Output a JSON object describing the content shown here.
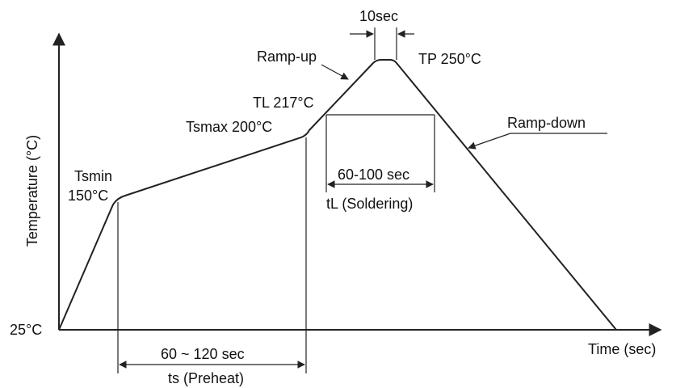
{
  "axes": {
    "y_label": "Temperature (°C)",
    "x_label": "Time (sec)",
    "origin_label": "25°C"
  },
  "profile_labels": {
    "tsmin_name": "Tsmin",
    "tsmin_value": "150°C",
    "tsmax": "Tsmax 200°C",
    "tl": "TL 217°C",
    "tp": "TP  250°C",
    "ramp_up": "Ramp-up",
    "ramp_down": "Ramp-down"
  },
  "intervals": {
    "peak_time": "10sec",
    "soldering_time": "60-100 sec",
    "soldering_name": "tL (Soldering)",
    "preheat_time": "60 ~ 120 sec",
    "preheat_name": "ts (Preheat)"
  },
  "colors": {
    "line": "#222222",
    "text": "#111111",
    "background": "#ffffff"
  }
}
